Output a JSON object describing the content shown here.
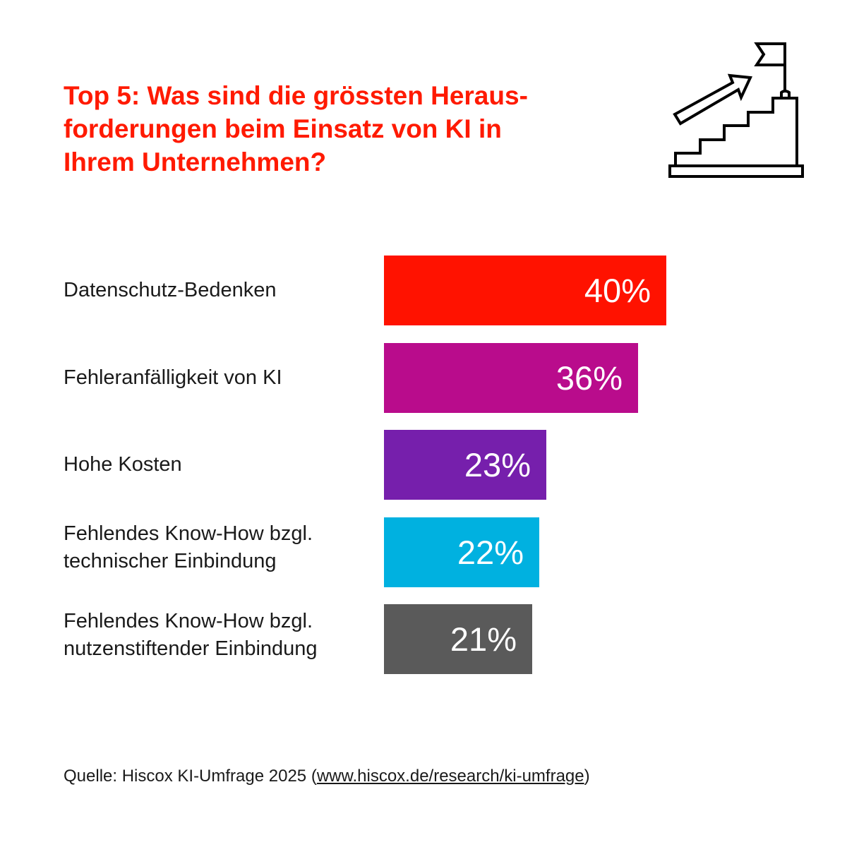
{
  "chart_data": {
    "type": "bar",
    "orientation": "horizontal",
    "title_lines": [
      "Top 5: Was sind die grössten Heraus-",
      "forderungen beim Einsatz von KI in",
      "Ihrem Unternehmen?"
    ],
    "categories": [
      [
        "Datenschutz-Bedenken"
      ],
      [
        "Fehleranfälligkeit von KI"
      ],
      [
        "Hohe Kosten"
      ],
      [
        "Fehlendes Know-How bzgl.",
        "technischer Einbindung"
      ],
      [
        "Fehlendes Know-How bzgl.",
        "nutzenstiftender Einbindung"
      ]
    ],
    "values": [
      40,
      36,
      23,
      22,
      21
    ],
    "value_labels": [
      "40%",
      "36%",
      "23%",
      "22%",
      "21%"
    ],
    "colors": [
      "#ff1200",
      "#b90c8c",
      "#761fac",
      "#00b1e0",
      "#5a5a5a"
    ],
    "unit": "%",
    "grid": false,
    "legend": "none"
  },
  "source": {
    "prefix": "Quelle: Hiscox KI-Umfrage 2025 (",
    "link": "www.hiscox.de/research/ki-umfrage",
    "suffix": ")"
  },
  "icon": "stairs-with-flag-and-arrow-icon",
  "accent_color": "#ff1a00"
}
